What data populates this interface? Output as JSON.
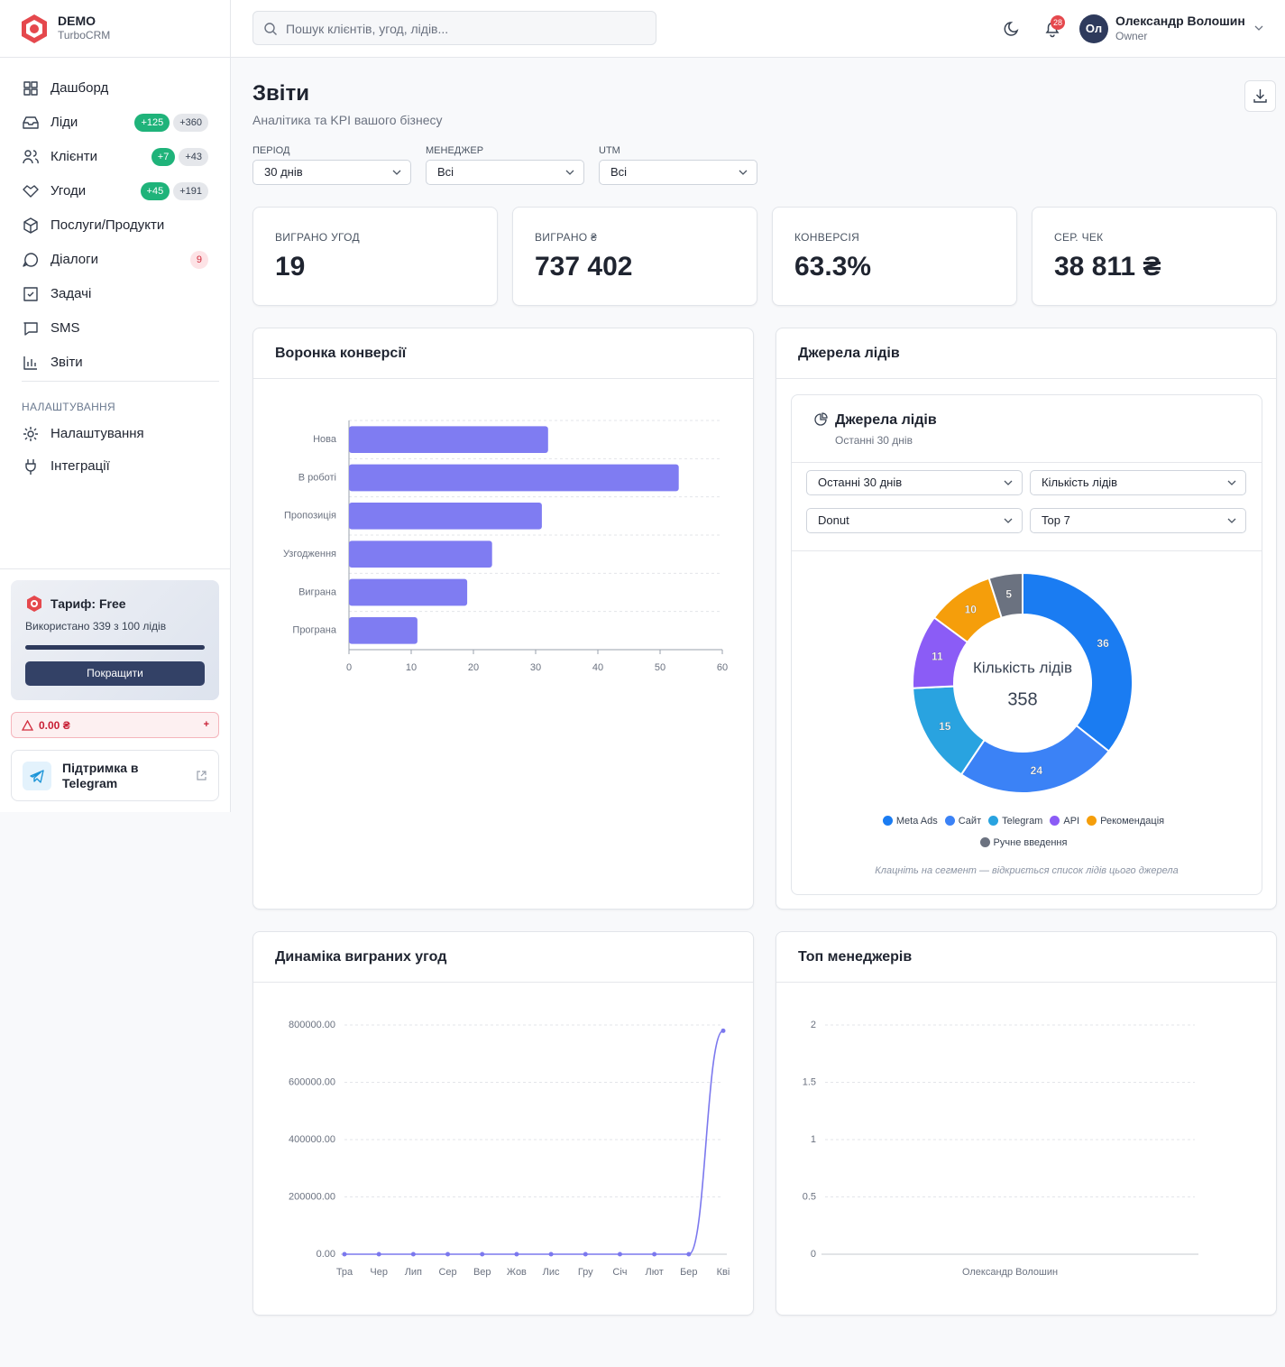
{
  "brand": {
    "name": "DEMO",
    "product": "TurboCRM"
  },
  "search": {
    "placeholder": "Пошук клієнтів, угод, лідів..."
  },
  "notifications": {
    "count": "28"
  },
  "user": {
    "initials": "Ол",
    "name": "Олександр Волошин",
    "role": "Owner"
  },
  "nav": [
    {
      "label": "Дашборд"
    },
    {
      "label": "Ліди",
      "badges": [
        "+125",
        "+360"
      ]
    },
    {
      "label": "Клієнти",
      "badges": [
        "+7",
        "+43"
      ]
    },
    {
      "label": "Угоди",
      "badges": [
        "+45",
        "+191"
      ]
    },
    {
      "label": "Послуги/Продукти"
    },
    {
      "label": "Діалоги",
      "badges": [
        "9"
      ]
    },
    {
      "label": "Задачі"
    },
    {
      "label": "SMS"
    },
    {
      "label": "Звіти"
    }
  ],
  "settings_nav": {
    "title": "НАЛАШТУВАННЯ",
    "items": [
      {
        "label": "Налаштування"
      },
      {
        "label": "Інтеграції"
      }
    ]
  },
  "plan": {
    "title": "Тариф: Free",
    "usage": "Використано 339 з 100 лідів",
    "button": "Покращити"
  },
  "balance": {
    "amount": "0.00 ₴",
    "action": "+"
  },
  "support": {
    "label": "Підтримка в Telegram"
  },
  "page": {
    "title": "Звіти",
    "subtitle": "Аналітика та KPI вашого бізнесу"
  },
  "filters": [
    {
      "label": "ПЕРІОД",
      "value": "30 днів"
    },
    {
      "label": "МЕНЕДЖЕР",
      "value": "Всі"
    },
    {
      "label": "UTM",
      "value": "Всі"
    }
  ],
  "kpis": [
    {
      "label": "ВИГРАНО УГОД",
      "value": "19"
    },
    {
      "label": "ВИГРАНО ₴",
      "value": "737 402"
    },
    {
      "label": "КОНВЕРСІЯ",
      "value": "63.3%"
    },
    {
      "label": "СЕР. ЧЕК",
      "value": "38 811 ₴"
    }
  ],
  "chart_data": [
    {
      "type": "bar",
      "orientation": "horizontal",
      "title": "Воронка конверсії",
      "categories": [
        "Нова",
        "В роботі",
        "Пропозиція",
        "Узгодження",
        "Виграна",
        "Програна"
      ],
      "values": [
        32,
        53,
        31,
        23,
        19,
        11
      ],
      "color": "#7f7cf2",
      "xlim": [
        0,
        60
      ],
      "xticks": [
        0,
        10,
        20,
        30,
        40,
        50,
        60
      ],
      "grid": true
    },
    {
      "type": "pie",
      "donut": true,
      "title": "Джерела лідів",
      "card_title": "Джерела лідів",
      "card_subtitle": "Останні 30 днів",
      "controls": [
        "Останні 30 днів",
        "Кількість лідів",
        "Donut",
        "Top 7"
      ],
      "center_label": "Кількість лідів",
      "center_value": 358,
      "categories": [
        "Meta Ads",
        "Сайт",
        "Telegram",
        "API",
        "Рекомендація",
        "Ручне введення"
      ],
      "values": [
        36,
        24,
        15,
        11,
        10,
        5
      ],
      "colors": [
        "#1a7cf2",
        "#3b82f6",
        "#29a3e0",
        "#8b5cf6",
        "#f59e0b",
        "#6b7280"
      ],
      "note": "Клацніть на сегмент — відкриється список лідів цього джерела"
    },
    {
      "type": "line",
      "smooth": true,
      "title": "Динаміка виграних угод",
      "categories": [
        "Тра",
        "Чер",
        "Лип",
        "Сер",
        "Вер",
        "Жов",
        "Лис",
        "Гру",
        "Січ",
        "Лют",
        "Бер",
        "Кві"
      ],
      "values": [
        0,
        0,
        0,
        0,
        0,
        0,
        0,
        0,
        0,
        0,
        0,
        780000
      ],
      "color": "#7b78ee",
      "ylim": [
        0,
        800000
      ],
      "yticks": [
        {
          "value": 0,
          "label": "0.00"
        },
        {
          "value": 200000,
          "label": "200000.00"
        },
        {
          "value": 400000,
          "label": "400000.00"
        },
        {
          "value": 600000,
          "label": "600000.00"
        },
        {
          "value": 800000,
          "label": "800000.00"
        }
      ],
      "grid": true
    },
    {
      "type": "bar",
      "title": "Топ менеджерів",
      "categories": [
        "Олександр Волошин"
      ],
      "values": [
        0
      ],
      "color": "#7b78ee",
      "ylim": [
        0,
        2
      ],
      "yticks": [
        0,
        0.5,
        1,
        1.5,
        2
      ],
      "grid": true
    }
  ]
}
